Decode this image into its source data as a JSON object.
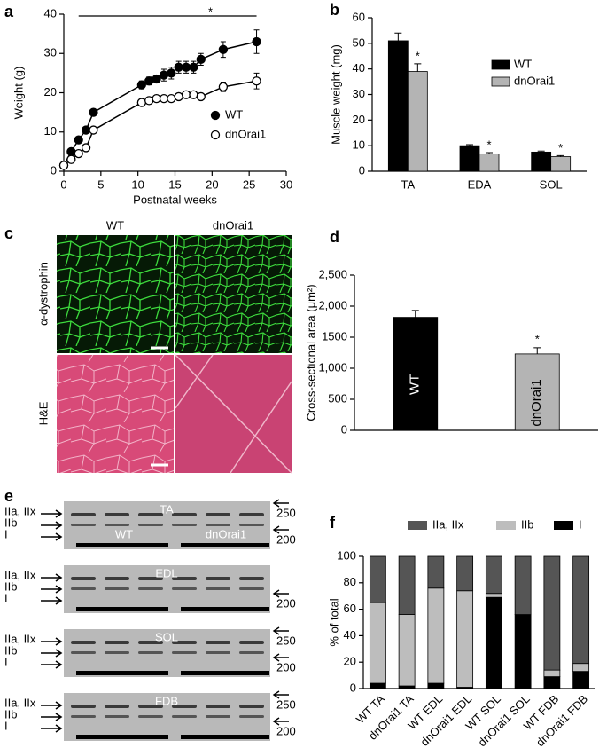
{
  "chart_data": [
    {
      "panel": "a",
      "type": "line",
      "annotation": "*",
      "x_label": "Postnatal weeks",
      "y_label": "Weight (g)",
      "x": [
        0,
        1,
        2,
        3,
        4,
        10.5,
        11.5,
        12.5,
        13.5,
        14.5,
        15.5,
        16.5,
        17.5,
        18.5,
        21.5,
        26
      ],
      "series": [
        {
          "name": "WT",
          "color": "#000000",
          "marker": "filled",
          "values": [
            1.5,
            5,
            8,
            10.5,
            15,
            22,
            23,
            23.5,
            24.5,
            25,
            26.5,
            26.5,
            26.5,
            28.5,
            31,
            33
          ],
          "errors": [
            0.4,
            0.5,
            0.6,
            0.8,
            0.8,
            1,
            1,
            1,
            1.5,
            1.5,
            1.5,
            1.5,
            1.5,
            1.5,
            2,
            3
          ]
        },
        {
          "name": "dnOrai1",
          "color": "#000000",
          "marker": "open",
          "values": [
            1.5,
            3,
            4.5,
            6,
            10.5,
            17.5,
            18,
            18.5,
            18.5,
            18.5,
            19,
            19.5,
            19.5,
            19,
            21.5,
            23
          ],
          "errors": [
            0.3,
            0.4,
            0.5,
            0.6,
            0.8,
            0.8,
            0.8,
            0.8,
            0.8,
            0.8,
            0.8,
            0.8,
            0.8,
            0.8,
            1.2,
            2
          ]
        }
      ],
      "xlim": [
        0,
        30
      ],
      "xticks": [
        0,
        5,
        10,
        15,
        20,
        25,
        30
      ],
      "ylim": [
        0,
        40
      ],
      "yticks": [
        0,
        10,
        20,
        30,
        40
      ]
    },
    {
      "panel": "b",
      "type": "bar",
      "y_label": "Muscle weight (mg)",
      "categories": [
        "TA",
        "EDA",
        "SOL"
      ],
      "series": [
        {
          "name": "WT",
          "color": "#000000",
          "values": [
            51,
            10,
            7.5
          ],
          "errors": [
            3,
            0.4,
            0.4
          ]
        },
        {
          "name": "dnOrai1",
          "color": "#b4b4b4",
          "values": [
            39,
            6.8,
            5.7
          ],
          "errors": [
            3,
            0.5,
            0.4
          ]
        }
      ],
      "annotations": [
        "*",
        "*",
        "*"
      ],
      "ylim": [
        0,
        60
      ],
      "yticks": [
        0,
        10,
        20,
        30,
        40,
        50,
        60
      ]
    },
    {
      "panel": "d",
      "type": "bar",
      "y_label": "Cross-sectional area (μm²)",
      "categories": [
        "WT",
        "dnOrai1"
      ],
      "values": [
        1820,
        1230
      ],
      "errors": [
        110,
        100
      ],
      "colors": [
        "#000000",
        "#b4b4b4"
      ],
      "annotation": "*",
      "ylim": [
        0,
        2500
      ],
      "yticks": [
        0,
        500,
        {
          "value": 1000,
          "label": "1,000"
        },
        1500,
        {
          "value": 2000,
          "label": "2,000"
        },
        {
          "value": 2500,
          "label": "2,500"
        }
      ]
    },
    {
      "panel": "f",
      "type": "stacked_bar",
      "y_label": "% of total",
      "categories": [
        "WT TA",
        "dnOrai1 TA",
        "WT EDL",
        "dnOrai1 EDL",
        "WT SOL",
        "dnOrai1 SOL",
        "WT FDB",
        "dnOrai1 FDB"
      ],
      "series": [
        {
          "name": "I",
          "color": "#000000",
          "values": [
            4,
            2,
            4,
            1,
            69,
            56,
            9,
            13
          ]
        },
        {
          "name": "IIb",
          "color": "#bdbdbd",
          "values": [
            61,
            54,
            72,
            73,
            3,
            0,
            5,
            6
          ]
        },
        {
          "name": "IIa, IIx",
          "color": "#555555",
          "values": [
            35,
            44,
            24,
            26,
            28,
            44,
            86,
            81
          ]
        }
      ],
      "ylim": [
        0,
        100
      ],
      "yticks": [
        0,
        20,
        40,
        60,
        80,
        100
      ]
    }
  ],
  "panel_c": {
    "panel": "c",
    "columns": [
      "WT",
      "dnOrai1"
    ],
    "rows": [
      "α-dystrophin",
      "H&E"
    ]
  },
  "panel_e": {
    "panel": "e",
    "gels": [
      {
        "title": "TA",
        "bands": [
          "IIa, IIx",
          "IIb",
          "I"
        ],
        "markers": [
          "250",
          "200"
        ],
        "groups": [
          "WT",
          "dnOrai1"
        ]
      },
      {
        "title": "EDL",
        "bands": [
          "IIa, IIx",
          "IIb",
          "I"
        ],
        "markers": [
          "200"
        ]
      },
      {
        "title": "SOL",
        "bands": [
          "IIa, IIx",
          "IIb",
          "I"
        ],
        "markers": [
          "250",
          "200"
        ]
      },
      {
        "title": "FDB",
        "bands": [
          "IIa, IIx",
          "IIb",
          "I"
        ],
        "markers": [
          "250",
          "200"
        ]
      }
    ]
  }
}
